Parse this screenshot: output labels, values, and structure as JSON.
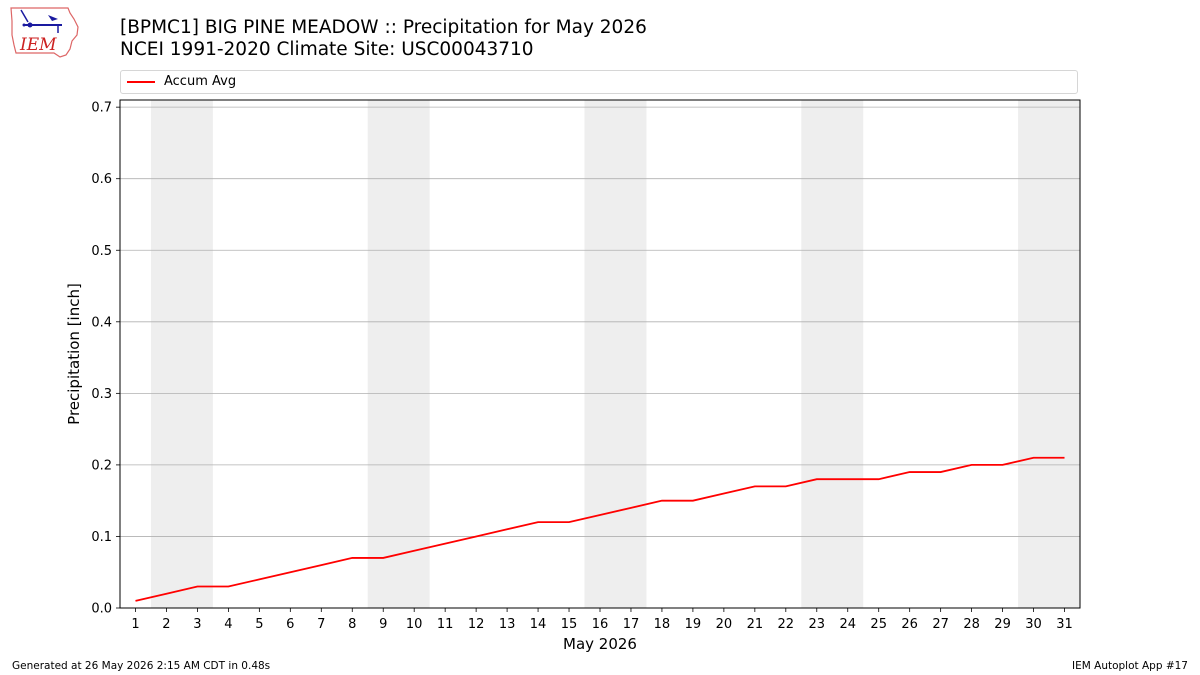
{
  "logo": {
    "text": "IEM"
  },
  "title": {
    "line1": "[BPMC1] BIG PINE MEADOW :: Precipitation for May 2026",
    "line2": "NCEI 1991-2020 Climate Site: USC00043710"
  },
  "colors": {
    "series": "#ff0000",
    "weekend_band": "#eeeeee",
    "grid": "#b0b0b0"
  },
  "chart_data": {
    "type": "line",
    "xlabel": "May 2026",
    "ylabel": "Precipitation [inch]",
    "ylim": [
      0,
      0.71
    ],
    "yticks": [
      0.0,
      0.1,
      0.2,
      0.3,
      0.4,
      0.5,
      0.6,
      0.7
    ],
    "ytick_labels": [
      "0.0",
      "0.1",
      "0.2",
      "0.3",
      "0.4",
      "0.5",
      "0.6",
      "0.7"
    ],
    "xlim": [
      0.5,
      31.5
    ],
    "x": [
      1,
      2,
      3,
      4,
      5,
      6,
      7,
      8,
      9,
      10,
      11,
      12,
      13,
      14,
      15,
      16,
      17,
      18,
      19,
      20,
      21,
      22,
      23,
      24,
      25,
      26,
      27,
      28,
      29,
      30,
      31
    ],
    "xtick_labels": [
      "1",
      "2",
      "3",
      "4",
      "5",
      "6",
      "7",
      "8",
      "9",
      "10",
      "11",
      "12",
      "13",
      "14",
      "15",
      "16",
      "17",
      "18",
      "19",
      "20",
      "21",
      "22",
      "23",
      "24",
      "25",
      "26",
      "27",
      "28",
      "29",
      "30",
      "31"
    ],
    "weekend_spans": [
      [
        2,
        3
      ],
      [
        9,
        10
      ],
      [
        16,
        17
      ],
      [
        23,
        24
      ],
      [
        30,
        31
      ]
    ],
    "grid": "horizontal",
    "legend_position": "top",
    "series": [
      {
        "name": "Accum Avg",
        "values": [
          0.01,
          0.02,
          0.03,
          0.03,
          0.04,
          0.05,
          0.06,
          0.07,
          0.07,
          0.08,
          0.09,
          0.1,
          0.11,
          0.12,
          0.12,
          0.13,
          0.14,
          0.15,
          0.15,
          0.16,
          0.17,
          0.17,
          0.18,
          0.18,
          0.18,
          0.19,
          0.19,
          0.2,
          0.2,
          0.21,
          0.21
        ]
      }
    ]
  },
  "footer": {
    "left": "Generated at 26 May 2026 2:15 AM CDT in 0.48s",
    "right": "IEM Autoplot App #17"
  }
}
